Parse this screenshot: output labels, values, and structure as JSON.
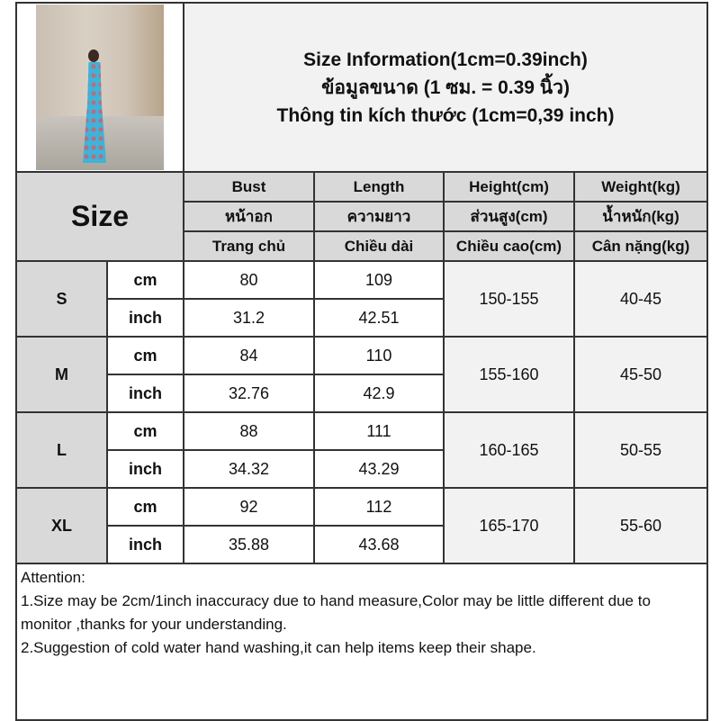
{
  "title": {
    "line1": "Size Information(1cm=0.39inch)",
    "line2": "ข้อมูลขนาด (1 ซม. = 0.39 นิ้ว)",
    "line3": "Thông tin kích thước (1cm=0,39 inch)"
  },
  "size_label": "Size",
  "columns": [
    {
      "en": "Bust",
      "th": "หน้าอก",
      "vi": "Trang chủ"
    },
    {
      "en": "Length",
      "th": "ความยาว",
      "vi": "Chiều dài"
    },
    {
      "en": "Height(cm)",
      "th": "ส่วนสูง(cm)",
      "vi": "Chiều cao(cm)"
    },
    {
      "en": "Weight(kg)",
      "th": "น้ำหนัก(kg)",
      "vi": "Cân nặng(kg)"
    }
  ],
  "units": {
    "cm": "cm",
    "inch": "inch"
  },
  "sizes": [
    {
      "size": "S",
      "cm": {
        "bust": "80",
        "length": "109"
      },
      "inch": {
        "bust": "31.2",
        "length": "42.51"
      },
      "height": "150-155",
      "weight": "40-45"
    },
    {
      "size": "M",
      "cm": {
        "bust": "84",
        "length": "110"
      },
      "inch": {
        "bust": "32.76",
        "length": "42.9"
      },
      "height": "155-160",
      "weight": "45-50"
    },
    {
      "size": "L",
      "cm": {
        "bust": "88",
        "length": "111"
      },
      "inch": {
        "bust": "34.32",
        "length": "43.29"
      },
      "height": "160-165",
      "weight": "50-55"
    },
    {
      "size": "XL",
      "cm": {
        "bust": "92",
        "length": "112"
      },
      "inch": {
        "bust": "35.88",
        "length": "43.68"
      },
      "height": "165-170",
      "weight": "55-60"
    }
  ],
  "notes": {
    "heading": "Attention:",
    "item1": "1.Size may be 2cm/1inch inaccuracy due to hand measure,Color may be little different due to monitor ,thanks for your understanding.",
    "item2": "2.Suggestion of cold water hand washing,it can help items keep their shape."
  }
}
